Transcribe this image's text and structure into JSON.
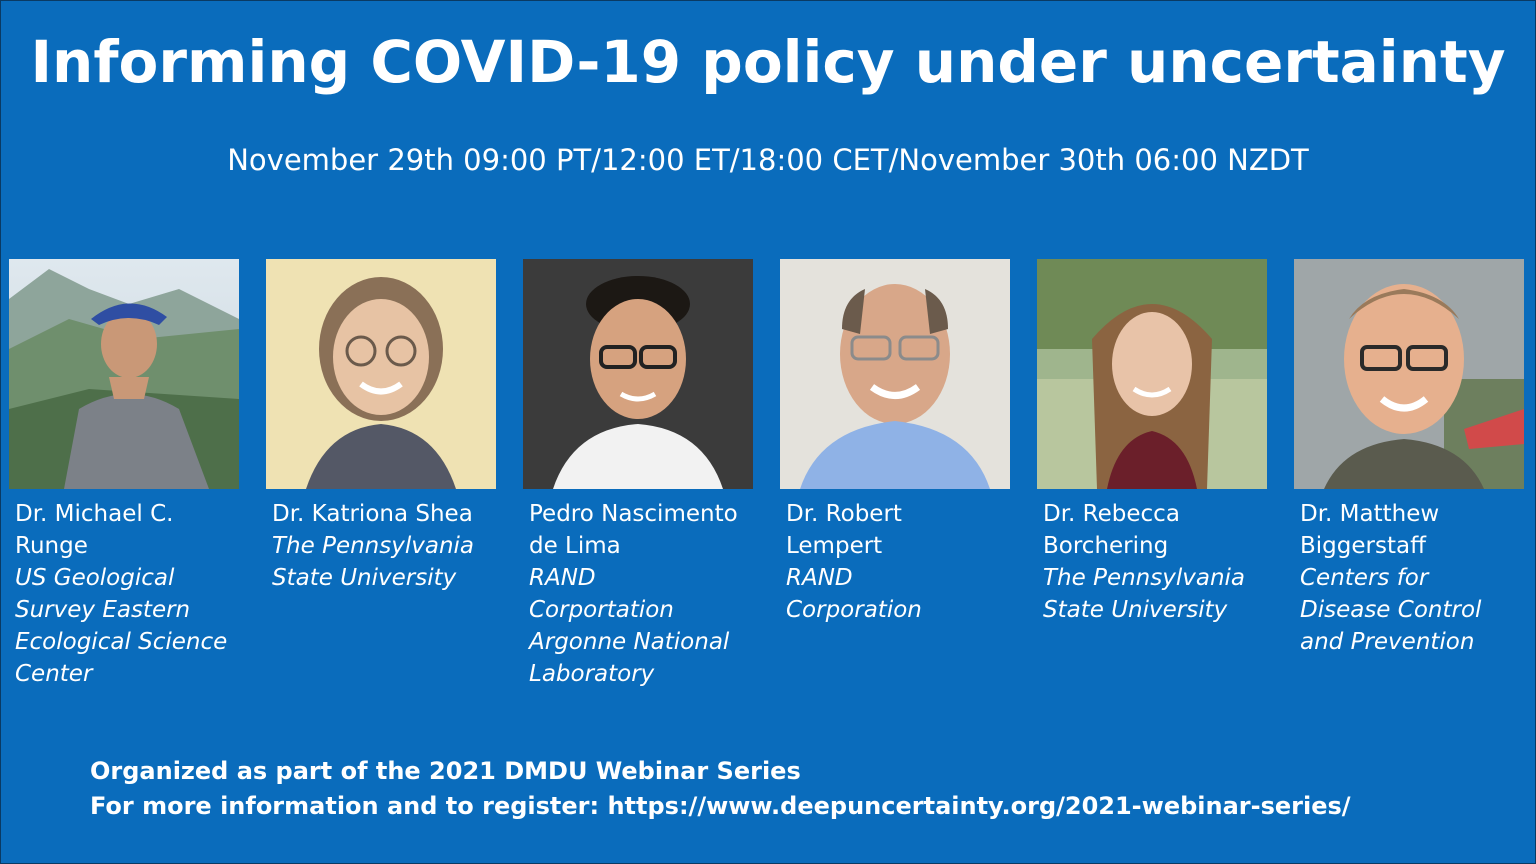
{
  "title": "Informing COVID-19 policy under uncertainty",
  "datetime": "November 29th 09:00 PT/12:00 ET/18:00 CET/November 30th 06:00 NZDT",
  "speakers": [
    {
      "name_line1": "Dr. Michael C.",
      "name_line2": "Runge",
      "affiliation_lines": [
        "US Geological",
        "Survey Eastern",
        "Ecological Science",
        "Center"
      ]
    },
    {
      "name_line1": "Dr. Katriona Shea",
      "name_line2": "",
      "affiliation_lines": [
        "The Pennsylvania",
        "State University",
        "",
        ""
      ]
    },
    {
      "name_line1": "Pedro Nascimento",
      "name_line2": "de Lima",
      "affiliation_lines": [
        "RAND",
        "Corportation",
        "Argonne National",
        "Laboratory"
      ]
    },
    {
      "name_line1": "Dr. Robert",
      "name_line2": "Lempert",
      "affiliation_lines": [
        "RAND",
        "Corporation",
        "",
        ""
      ]
    },
    {
      "name_line1": "Dr. Rebecca",
      "name_line2": "Borchering",
      "affiliation_lines": [
        "The Pennsylvania",
        "State University",
        "",
        ""
      ]
    },
    {
      "name_line1": "Dr. Matthew",
      "name_line2": "Biggerstaff",
      "affiliation_lines": [
        "Centers for",
        "Disease Control",
        "and Prevention",
        ""
      ]
    }
  ],
  "footer": {
    "line1": "Organized as part of the 2021 DMDU Webinar Series",
    "line2": "For more information and to register: https://www.deepuncertainty.org/2021-webinar-series/"
  },
  "colors": {
    "background": "#0a6cbc",
    "text": "#ffffff"
  }
}
